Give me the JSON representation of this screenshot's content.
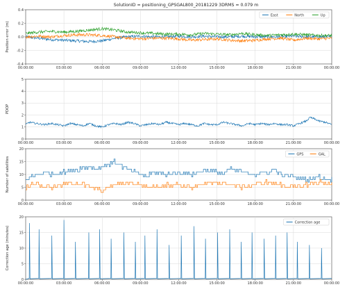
{
  "figure": {
    "title": "SolutionID = positioning_GPSGAL800_20181229   3DRMS = 0.079 m"
  },
  "x_ticks": [
    "00:00:00",
    "03:00:00",
    "06:00:00",
    "09:00:00",
    "12:00:00",
    "15:00:00",
    "18:00:00",
    "21:00:00",
    "00:00:00"
  ],
  "colors": {
    "blue": "#1f77b4",
    "orange": "#ff7f0e",
    "green": "#2ca02c",
    "grid": "#d9d9d9",
    "axis": "#444444"
  },
  "chart_data": [
    {
      "type": "line",
      "ylabel": "Position error (m)",
      "ylim": [
        -0.4,
        0.4
      ],
      "yticks": [
        -0.4,
        -0.2,
        0.0,
        0.2,
        0.4
      ],
      "xlim": [
        0,
        24
      ],
      "legend": "top-right",
      "series": [
        {
          "name": "East",
          "color": "#1f77b4",
          "x": [
            0,
            1,
            2,
            3,
            4,
            5,
            6,
            7,
            8,
            9,
            10,
            11,
            12,
            13,
            14,
            15,
            16,
            17,
            18,
            19,
            20,
            21,
            22,
            23,
            24
          ],
          "y": [
            0.0,
            -0.02,
            -0.04,
            -0.05,
            -0.06,
            -0.07,
            -0.06,
            -0.02,
            0.0,
            0.01,
            0.0,
            0.0,
            0.01,
            0.0,
            0.01,
            0.0,
            0.0,
            0.01,
            0.0,
            0.0,
            0.0,
            0.01,
            0.0,
            0.0,
            0.0
          ]
        },
        {
          "name": "North",
          "color": "#ff7f0e",
          "x": [
            0,
            1,
            2,
            3,
            4,
            5,
            6,
            7,
            8,
            9,
            10,
            11,
            12,
            13,
            14,
            15,
            16,
            17,
            18,
            19,
            20,
            21,
            22,
            23,
            24
          ],
          "y": [
            0.0,
            0.01,
            0.0,
            0.02,
            0.03,
            0.03,
            0.02,
            0.0,
            -0.02,
            -0.03,
            -0.02,
            -0.02,
            -0.03,
            -0.05,
            -0.04,
            -0.03,
            -0.05,
            -0.06,
            -0.05,
            -0.03,
            -0.02,
            -0.05,
            -0.02,
            -0.03,
            -0.02
          ]
        },
        {
          "name": "Up",
          "color": "#2ca02c",
          "x": [
            0,
            1,
            2,
            3,
            4,
            5,
            6,
            7,
            8,
            9,
            10,
            11,
            12,
            13,
            14,
            15,
            16,
            17,
            18,
            19,
            20,
            21,
            22,
            23,
            24
          ],
          "y": [
            0.05,
            0.07,
            0.08,
            0.07,
            0.08,
            0.1,
            0.12,
            0.1,
            0.07,
            0.06,
            0.05,
            0.04,
            0.04,
            0.03,
            0.05,
            0.04,
            0.03,
            0.05,
            0.03,
            0.02,
            0.03,
            0.04,
            0.03,
            0.02,
            0.02
          ]
        }
      ]
    },
    {
      "type": "line",
      "ylabel": "PDOP",
      "ylim": [
        0,
        5
      ],
      "yticks": [
        0,
        1,
        2,
        3,
        4,
        5
      ],
      "xlim": [
        0,
        24
      ],
      "series": [
        {
          "name": "",
          "color": "#1f77b4",
          "x": [
            0,
            0.3,
            0.8,
            1.5,
            2,
            2.5,
            3,
            3.5,
            4,
            4.5,
            5,
            5.5,
            6,
            6.5,
            7,
            7.5,
            8,
            8.5,
            9,
            9.5,
            10,
            10.5,
            11,
            11.5,
            12,
            12.5,
            13,
            13.5,
            14,
            14.5,
            15,
            15.5,
            16,
            16.5,
            17,
            17.5,
            18,
            18.5,
            19,
            19.5,
            20,
            20.5,
            21,
            21.5,
            22,
            22.3,
            22.6,
            23,
            23.5,
            24
          ],
          "y": [
            1.2,
            1.4,
            1.3,
            1.2,
            1.3,
            1.2,
            1.1,
            1.3,
            1.2,
            1.1,
            1.3,
            1.1,
            1.0,
            1.2,
            1.3,
            1.2,
            1.4,
            1.3,
            1.1,
            1.2,
            1.3,
            1.2,
            1.4,
            1.3,
            1.2,
            1.3,
            1.2,
            1.1,
            1.3,
            1.2,
            1.2,
            1.4,
            1.3,
            1.2,
            1.1,
            1.3,
            1.2,
            1.3,
            1.2,
            1.3,
            1.2,
            1.2,
            1.1,
            1.3,
            1.5,
            1.8,
            1.7,
            1.5,
            1.4,
            1.2
          ]
        }
      ]
    },
    {
      "type": "line",
      "ylabel": "Number of satellites",
      "ylim": [
        0,
        20
      ],
      "yticks": [
        0,
        5,
        10,
        15,
        20
      ],
      "xlim": [
        0,
        24
      ],
      "legend": "top-right",
      "series": [
        {
          "name": "GPS",
          "color": "#1f77b4",
          "x": [
            0,
            1,
            1.5,
            2,
            3,
            4,
            5,
            5.5,
            6,
            6.5,
            7,
            7.5,
            8,
            9,
            9.5,
            10,
            11,
            12,
            13,
            14,
            15,
            15.5,
            16,
            17,
            18,
            19,
            19.5,
            20,
            21,
            22,
            23,
            24
          ],
          "y": [
            8,
            10,
            11,
            10,
            11,
            12,
            13,
            12,
            13,
            14,
            15,
            13,
            12,
            10,
            9,
            11,
            10,
            11,
            10,
            12,
            11,
            10,
            12,
            11,
            10,
            11,
            12,
            10,
            9,
            8,
            9,
            8
          ]
        },
        {
          "name": "GAL",
          "color": "#ff7f0e",
          "x": [
            0,
            0.5,
            1,
            2,
            3,
            4,
            5,
            6,
            6.5,
            7,
            8,
            9,
            10,
            11,
            12,
            13,
            14,
            15,
            16,
            17,
            18,
            19,
            20,
            21,
            22,
            23,
            24
          ],
          "y": [
            5,
            7,
            6,
            5,
            6,
            7,
            5,
            4,
            5,
            6,
            7,
            6,
            5,
            6,
            6,
            5,
            6,
            7,
            6,
            5,
            6,
            7,
            6,
            5,
            6,
            7,
            6
          ]
        }
      ]
    },
    {
      "type": "line",
      "ylabel": "Correction age (minutes)",
      "ylim": [
        0,
        20
      ],
      "yticks": [
        0,
        5,
        10,
        15,
        20
      ],
      "xlim": [
        0,
        24
      ],
      "legend": "top-right",
      "series": [
        {
          "name": "Correction age",
          "color": "#1f77b4",
          "sawtooth_peak_times": [
            0.3,
            1.05,
            2.05,
            3.0,
            3.9,
            4.95,
            5.8,
            6.7,
            7.7,
            8.6,
            9.35,
            10.3,
            11.25,
            12.2,
            13.2,
            14.1,
            15.05,
            16.0,
            16.9,
            17.75,
            18.7,
            19.6,
            20.5,
            21.3,
            22.25,
            23.2
          ],
          "sawtooth_peak_values": [
            18,
            16,
            14,
            19,
            12,
            15,
            16,
            13,
            15,
            12,
            14,
            16,
            11,
            14,
            17,
            13,
            15,
            16,
            12,
            15,
            13,
            14,
            15,
            12,
            11,
            10
          ]
        }
      ]
    }
  ]
}
